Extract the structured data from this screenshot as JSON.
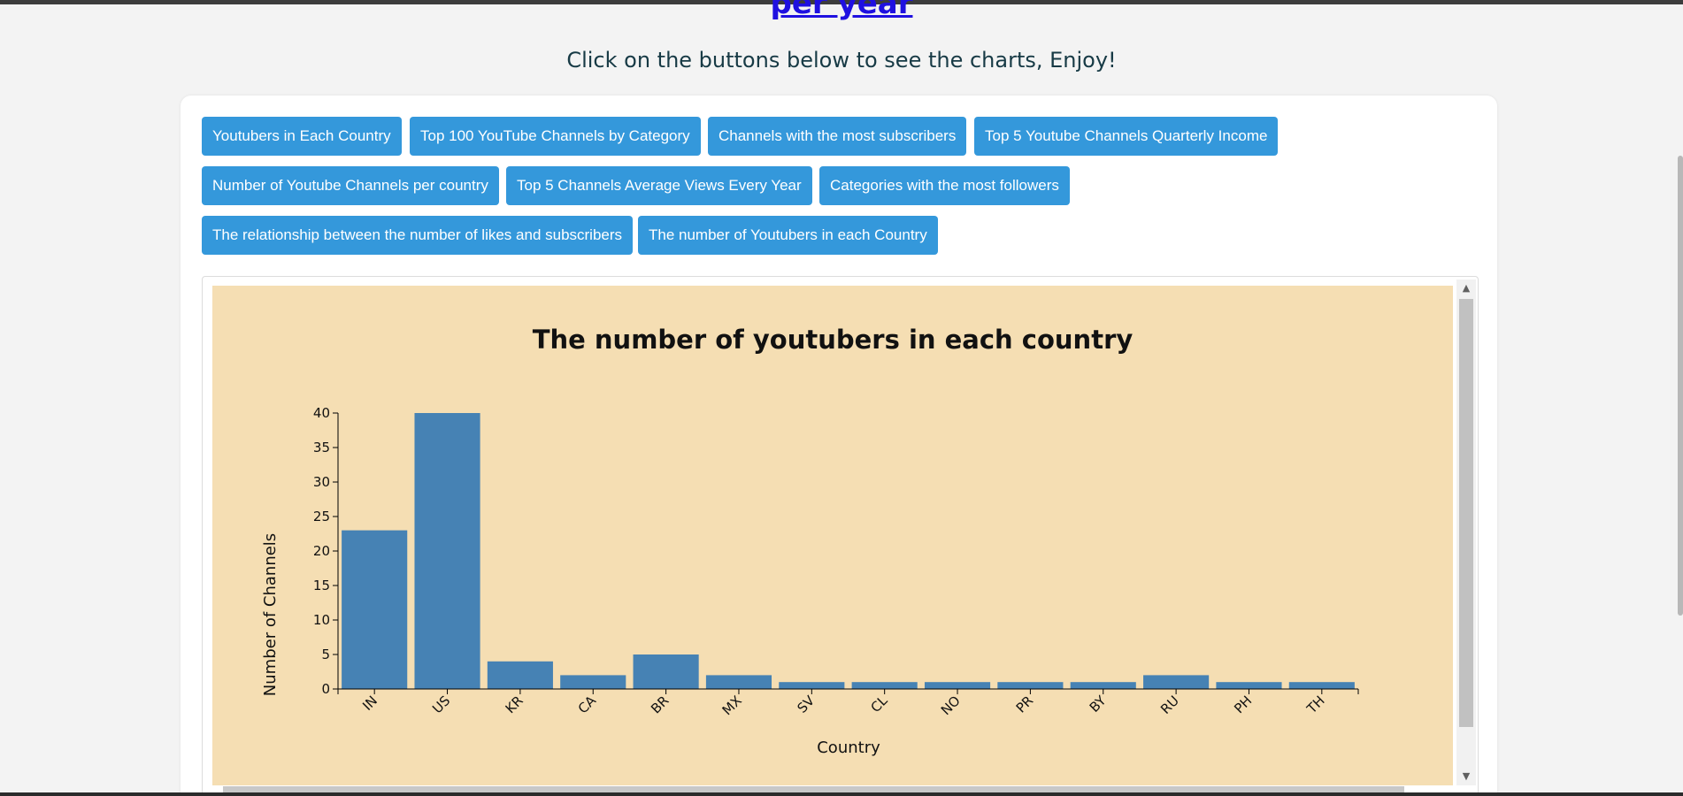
{
  "page": {
    "heading_link": "per year",
    "subtitle": "Click on the buttons below to see the charts, Enjoy!"
  },
  "buttons": [
    {
      "label": "Youtubers in Each Country"
    },
    {
      "label": "Top 100 YouTube Channels by Category"
    },
    {
      "label": "Channels with the most subscribers"
    },
    {
      "label": "Top 5 Youtube Channels Quarterly Income"
    },
    {
      "label": "Number of Youtube Channels per country"
    },
    {
      "label": "Top 5 Channels Average Views Every Year"
    },
    {
      "label": "Categories with the most followers"
    },
    {
      "label": "The relationship between the number of likes and subscribers"
    },
    {
      "label": "The number of Youtubers in each Country"
    }
  ],
  "colors": {
    "button": "#3498db",
    "chart_background": "#f5deb3",
    "bar": "#4682b4"
  },
  "chart_data": {
    "type": "bar",
    "title": "The number of youtubers in each country",
    "xlabel": "Country",
    "ylabel": "Number of Channels",
    "categories": [
      "IN",
      "US",
      "KR",
      "CA",
      "BR",
      "MX",
      "SV",
      "CL",
      "NO",
      "PR",
      "BY",
      "RU",
      "PH",
      "TH"
    ],
    "values": [
      23,
      40,
      4,
      2,
      5,
      2,
      1,
      1,
      1,
      1,
      1,
      2,
      1,
      1
    ],
    "ylim": [
      0,
      40
    ],
    "yticks": [
      0,
      5,
      10,
      15,
      20,
      25,
      30,
      35,
      40
    ],
    "grid": false,
    "legend": "none"
  }
}
